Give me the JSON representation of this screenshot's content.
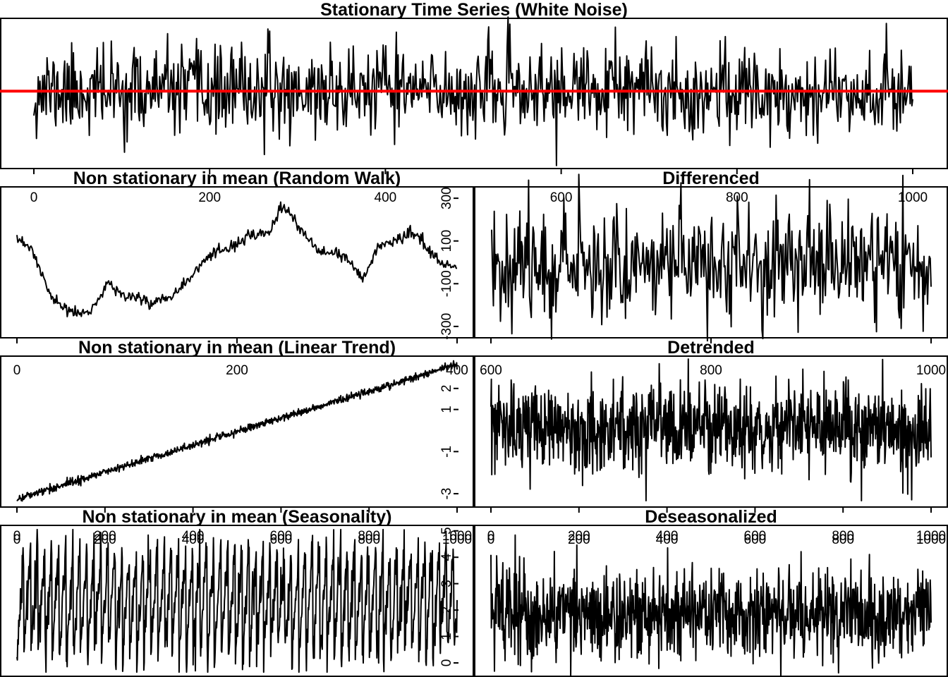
{
  "chart_data": [
    {
      "id": "white_noise",
      "type": "line",
      "title": "Stationary Time Series (White Noise)",
      "generator": "white_noise",
      "n": 1000,
      "xlim": [
        -20,
        1000
      ],
      "ylim": [
        -3.3,
        3.1
      ],
      "x_ticks": [
        0,
        200,
        400,
        600,
        800,
        1000
      ],
      "x_tick_labels": [
        "0",
        "200",
        "400",
        "600",
        "800",
        "1000"
      ],
      "y_ticks": [],
      "y_tick_labels": [],
      "reference_line": {
        "y": 0,
        "color": "#ff0000"
      },
      "line_color": "#000000"
    },
    {
      "id": "random_walk",
      "type": "line",
      "title": "Non stationary in mean (Random Walk)",
      "generator": "random_walk",
      "n": 500,
      "xlim": [
        -20,
        500
      ],
      "ylim": [
        -340,
        340
      ],
      "x_ticks": [
        0,
        200,
        400
      ],
      "x_tick_labels": [
        "0",
        "200",
        "400"
      ],
      "y_ticks": [
        300,
        100,
        -100,
        -300
      ],
      "y_tick_labels": [
        "300",
        "100",
        "-100",
        "-300"
      ],
      "line_color": "#000000"
    },
    {
      "id": "differenced",
      "type": "line",
      "title": "Differenced",
      "generator": "differenced",
      "n": 500,
      "xlim": [
        480,
        1020
      ],
      "ylim": [
        -3.2,
        3.2
      ],
      "x_ticks": [
        600,
        800,
        1000
      ],
      "x_tick_labels": [
        "600",
        "800",
        "1000"
      ],
      "y_ticks": [],
      "y_tick_labels": [],
      "line_color": "#000000"
    },
    {
      "id": "linear_trend",
      "type": "line",
      "title": "Non stationary in mean (Linear Trend)",
      "generator": "linear_trend",
      "n": 1000,
      "xlim": [
        -20,
        1000
      ],
      "ylim": [
        -3.5,
        3.4
      ],
      "x_ticks": [
        0,
        200,
        400,
        600,
        800,
        1000
      ],
      "x_tick_labels": [
        "0",
        "200",
        "400",
        "600",
        "800",
        "1000"
      ],
      "y_ticks": [
        2,
        1,
        -1,
        -3
      ],
      "y_tick_labels": [
        "2",
        "1",
        "-1",
        "-3"
      ],
      "line_color": "#000000"
    },
    {
      "id": "detrended",
      "type": "line",
      "title": "Detrended",
      "generator": "detrended",
      "n": 1000,
      "xlim": [
        -20,
        1000
      ],
      "ylim": [
        -3.4,
        3.1
      ],
      "x_ticks": [
        0,
        200,
        400,
        600,
        800,
        1000
      ],
      "x_tick_labels": [
        "0",
        "200",
        "400",
        "600",
        "800",
        "1000"
      ],
      "y_ticks": [],
      "y_tick_labels": [],
      "line_color": "#000000"
    },
    {
      "id": "seasonality",
      "type": "line",
      "title": "Non stationary in mean (Seasonality)",
      "generator": "seasonality",
      "n": 1000,
      "xlim": [
        -20,
        1000
      ],
      "ylim": [
        -0.4,
        5.1
      ],
      "x_ticks": [
        0,
        200,
        400,
        600,
        800,
        1000
      ],
      "x_tick_labels": [
        "0",
        "200",
        "400",
        "600",
        "800",
        "1000"
      ],
      "y_ticks": [
        5,
        4,
        3,
        2,
        1,
        0
      ],
      "y_tick_labels": [
        "5",
        "4",
        "3",
        "2",
        "1",
        "0"
      ],
      "line_color": "#000000"
    },
    {
      "id": "deseasonalized",
      "type": "line",
      "title": "Deseasonalized",
      "generator": "deseasonalized",
      "n": 1000,
      "xlim": [
        -20,
        1000
      ],
      "ylim": [
        -2.6,
        3.8
      ],
      "x_ticks": [
        0,
        200,
        400,
        600,
        800,
        1000
      ],
      "x_tick_labels": [
        "0",
        "200",
        "400",
        "600",
        "800",
        "1000"
      ],
      "y_ticks": [],
      "y_tick_labels": [],
      "line_color": "#000000"
    }
  ]
}
